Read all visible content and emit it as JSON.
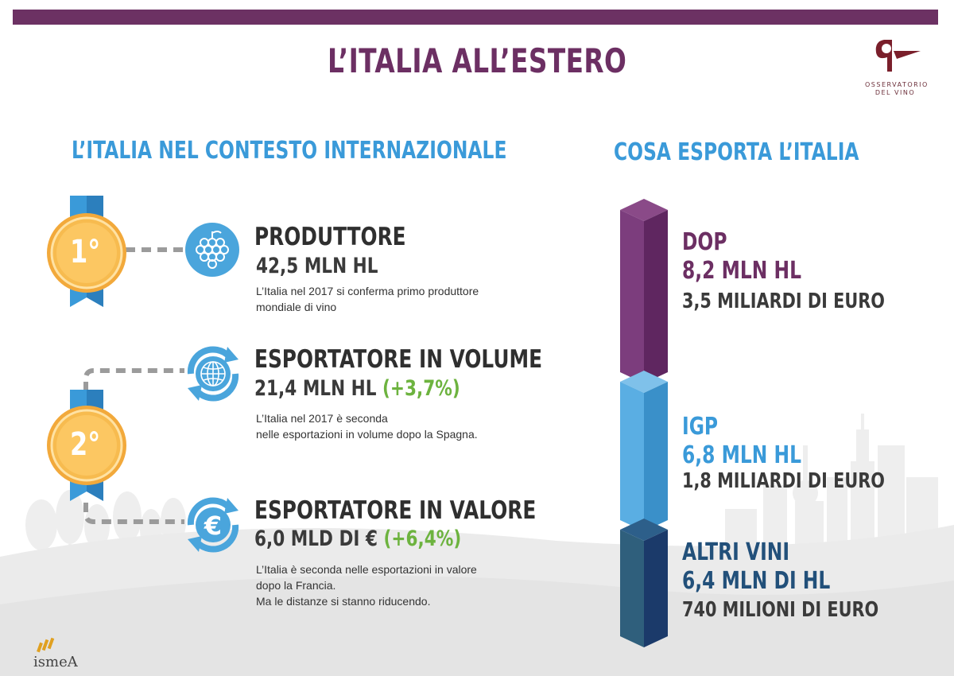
{
  "header": {
    "title": "L’ITALIA ALL’ESTERO",
    "logo_line1": "OSSERVATORIO",
    "logo_line2": "DEL VINO"
  },
  "left_section": {
    "title": "L’ITALIA NEL CONTESTO INTERNAZIONALE",
    "rank1": "1°",
    "rank2": "2°",
    "producer": {
      "label": "PRODUTTORE",
      "value": "42,5 MLN HL",
      "desc_line1": "L’Italia nel 2017 si conferma primo produttore",
      "desc_line2": "mondiale di vino"
    },
    "volume": {
      "label": "ESPORTATORE IN VOLUME",
      "value": "21,4 MLN HL",
      "change": "(+3,7%)",
      "desc_line1": "L’Italia nel 2017 è seconda",
      "desc_line2": "nelle esportazioni in volume dopo la Spagna."
    },
    "value_export": {
      "label": "ESPORTATORE IN VALORE",
      "value": "6,0 MLD DI €",
      "change": "(+6,4%)",
      "desc_line1": "L’Italia è seconda nelle esportazioni in valore",
      "desc_line2": "dopo la Francia.",
      "desc_line3": "Ma le distanze si stanno riducendo."
    }
  },
  "right_section": {
    "title": "COSA ESPORTA L’ITALIA",
    "dop": {
      "name": "DOP",
      "volume": "8,2 MLN HL",
      "value": "3,5 MILIARDI DI EURO"
    },
    "igp": {
      "name": "IGP",
      "volume": "6,8 MLN HL",
      "value": "1,8 MILIARDI DI EURO"
    },
    "altri": {
      "name": "ALTRI VINI",
      "volume": "6,4 MLN DI HL",
      "value": "740 MILIONI DI EURO"
    }
  },
  "footer": {
    "brand": "ismeA"
  },
  "colors": {
    "purple": "#6c2f63",
    "blue": "#3a9ad9",
    "light_blue": "#4fa9dc",
    "dark_blue": "#234a78",
    "green": "#6db33f",
    "gold": "#f5b44a"
  }
}
